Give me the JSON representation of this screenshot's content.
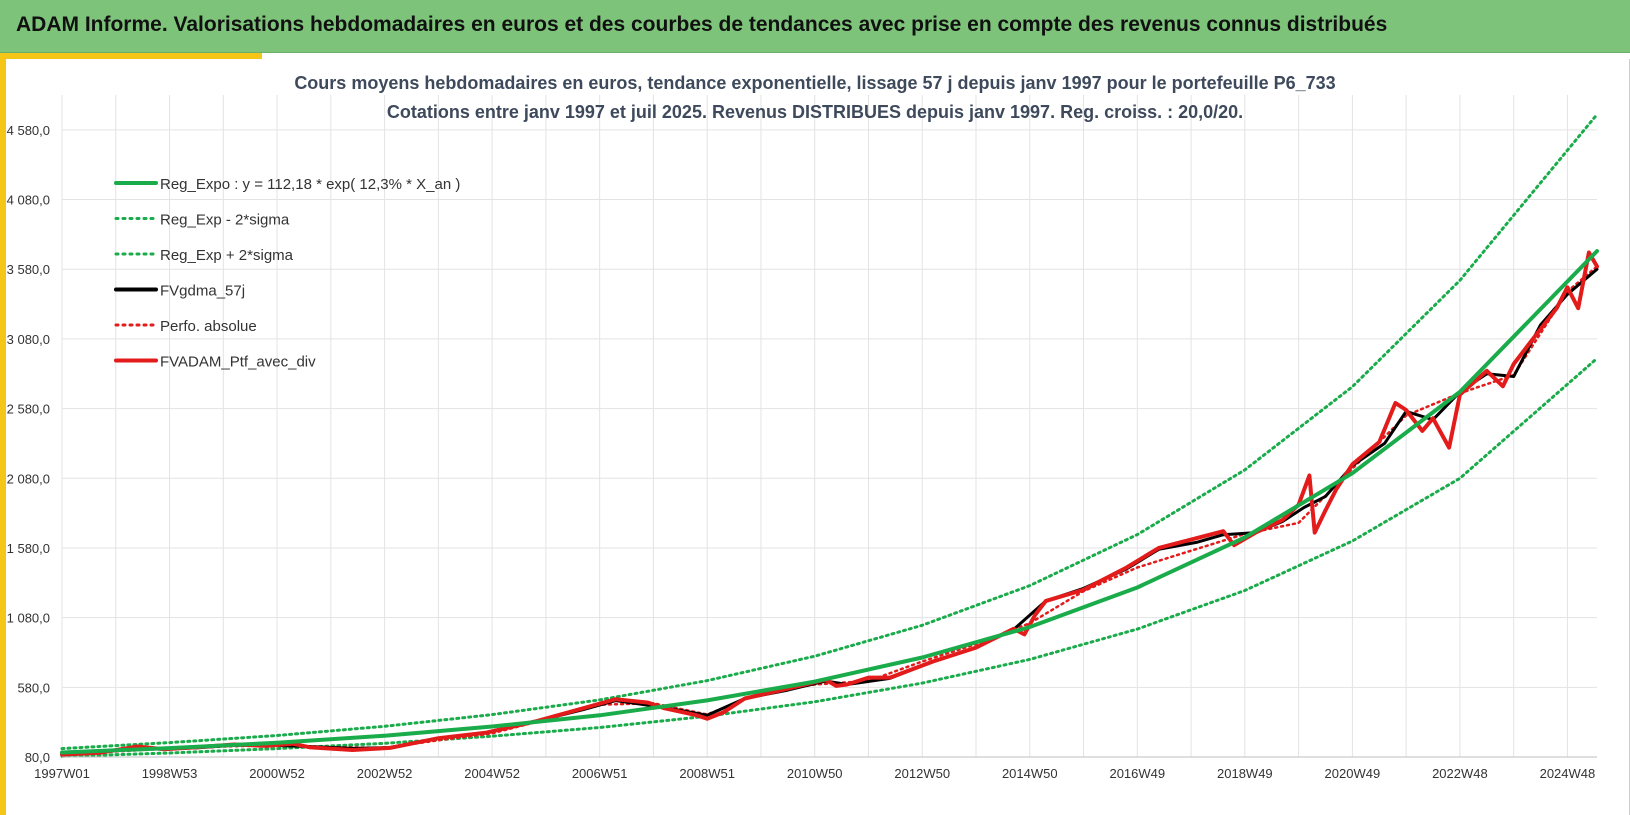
{
  "header": {
    "title": "ADAM Informe. Valorisations hebdomadaires en euros et des courbes de tendances avec prise en compte des revenus connus distribués"
  },
  "colors": {
    "header_bg": "#7dc47a",
    "accent": "#f5c518",
    "reg_expo": "#1aab4b",
    "sigma_bands": "#1aab4b",
    "fvgdma": "#000000",
    "perfo_absolue": "#e31b1b",
    "fvadam": "#e31b1b",
    "grid": "#e3e3e3"
  },
  "chart_data": {
    "type": "line",
    "title": [
      "Cours moyens hebdomadaires  en euros, tendance exponentielle, lissage 57 j depuis janv 1997 pour le portefeuille P6_733",
      "Cotations  entre janv 1997 et juil 2025. Revenus DISTRIBUES depuis janv 1997. Reg. croiss. : 20,0/20."
    ],
    "xlabel": "",
    "ylabel": "",
    "x_range": [
      1997.0,
      2025.55
    ],
    "ylim": [
      80,
      4830
    ],
    "grid": true,
    "legend_position": "top-left",
    "x_ticks": [
      {
        "label": "1997W01",
        "x": 1997.0
      },
      {
        "label": "1998W53",
        "x": 1999.0
      },
      {
        "label": "2000W52",
        "x": 2001.0
      },
      {
        "label": "2002W52",
        "x": 2003.0
      },
      {
        "label": "2004W52",
        "x": 2005.0
      },
      {
        "label": "2006W51",
        "x": 2007.0
      },
      {
        "label": "2008W51",
        "x": 2009.0
      },
      {
        "label": "2010W50",
        "x": 2011.0
      },
      {
        "label": "2012W50",
        "x": 2013.0
      },
      {
        "label": "2014W50",
        "x": 2015.0
      },
      {
        "label": "2016W49",
        "x": 2017.0
      },
      {
        "label": "2018W49",
        "x": 2019.0
      },
      {
        "label": "2020W49",
        "x": 2021.0
      },
      {
        "label": "2022W48",
        "x": 2023.0
      },
      {
        "label": "2024W48",
        "x": 2025.0
      }
    ],
    "y_ticks": [
      {
        "label": "80,0",
        "y": 80
      },
      {
        "label": "580,0",
        "y": 580
      },
      {
        "label": "1 080,0",
        "y": 1080
      },
      {
        "label": "1 580,0",
        "y": 1580
      },
      {
        "label": "2 080,0",
        "y": 2080
      },
      {
        "label": "2 580,0",
        "y": 2580
      },
      {
        "label": "3 080,0",
        "y": 3080
      },
      {
        "label": "3 580,0",
        "y": 3580
      },
      {
        "label": "4 080,0",
        "y": 4080
      },
      {
        "label": "4 580,0",
        "y": 4580
      }
    ],
    "legend": [
      {
        "label": "Reg_Expo : y = 112,18 * exp( 12,3% *  X_an )",
        "color": "#1aab4b",
        "style": "solid"
      },
      {
        "label": "Reg_Exp - 2*sigma",
        "color": "#1aab4b",
        "style": "dotted"
      },
      {
        "label": "Reg_Exp + 2*sigma",
        "color": "#1aab4b",
        "style": "dotted"
      },
      {
        "label": "FVgdma_57j",
        "color": "#000000",
        "style": "solid"
      },
      {
        "label": "Perfo. absolue",
        "color": "#e31b1b",
        "style": "dotted"
      },
      {
        "label": "FVADAM_Ptf_avec_div",
        "color": "#e31b1b",
        "style": "solid"
      }
    ],
    "series": [
      {
        "name": "Reg_Expo : y = 112,18 * exp( 12,3% *  X_an )",
        "style": "solid",
        "x": [
          1997.0,
          1999.0,
          2001.0,
          2003.0,
          2005.0,
          2007.0,
          2009.0,
          2011.0,
          2013.0,
          2015.0,
          2017.0,
          2019.0,
          2021.0,
          2023.0,
          2025.55
        ],
        "values": [
          112,
          144,
          182,
          233,
          299,
          379,
          486,
          621,
          794,
          1013,
          1296,
          1656,
          2116,
          2700,
          3710
        ]
      },
      {
        "name": "Reg_Exp - 2*sigma",
        "style": "dotted",
        "x": [
          1997.0,
          1999.0,
          2001.0,
          2003.0,
          2005.0,
          2007.0,
          2009.0,
          2011.0,
          2013.0,
          2015.0,
          2017.0,
          2019.0,
          2021.0,
          2023.0,
          2025.55
        ],
        "values": [
          85,
          109,
          140,
          178,
          229,
          292,
          373,
          476,
          610,
          780,
          998,
          1275,
          1630,
          2080,
          2940
        ]
      },
      {
        "name": "Reg_Exp + 2*sigma",
        "style": "dotted",
        "x": [
          1997.0,
          1999.0,
          2001.0,
          2003.0,
          2005.0,
          2007.0,
          2009.0,
          2011.0,
          2013.0,
          2015.0,
          2017.0,
          2019.0,
          2021.0,
          2023.0,
          2025.55
        ],
        "values": [
          140,
          183,
          234,
          300,
          384,
          490,
          628,
          803,
          1025,
          1310,
          1676,
          2140,
          2737,
          3500,
          4690
        ]
      },
      {
        "name": "FVgdma_57j",
        "style": "solid",
        "x": [
          1997.0,
          1997.7,
          1998.4,
          1998.9,
          1999.5,
          2000.2,
          2000.8,
          2001.6,
          2002.4,
          2003.1,
          2004.0,
          2004.9,
          2005.8,
          2006.7,
          2007.3,
          2008.2,
          2009.0,
          2009.7,
          2010.5,
          2011.2,
          2011.6,
          2012.4,
          2013.2,
          2014.0,
          2014.7,
          2015.3,
          2016.0,
          2016.8,
          2017.4,
          2018.1,
          2018.6,
          2019.2,
          2019.7,
          2020.1,
          2020.5,
          2021.0,
          2021.6,
          2022.0,
          2022.5,
          2023.0,
          2023.5,
          2024.0,
          2024.5,
          2025.0,
          2025.55
        ],
        "values": [
          95,
          115,
          140,
          138,
          145,
          165,
          165,
          155,
          142,
          148,
          215,
          255,
          335,
          420,
          485,
          435,
          380,
          500,
          560,
          625,
          600,
          645,
          765,
          865,
          995,
          1200,
          1290,
          1430,
          1570,
          1620,
          1675,
          1690,
          1770,
          1870,
          1950,
          2170,
          2330,
          2560,
          2500,
          2700,
          2830,
          2810,
          3180,
          3400,
          3580
        ]
      },
      {
        "name": "Perfo. absolue",
        "style": "dotted",
        "x": [
          1997.0,
          1998.0,
          1999.0,
          2000.0,
          2001.0,
          2002.0,
          2003.0,
          2004.0,
          2005.0,
          2006.0,
          2007.0,
          2008.0,
          2009.0,
          2010.0,
          2011.0,
          2012.0,
          2013.0,
          2014.0,
          2015.0,
          2016.0,
          2017.0,
          2018.0,
          2019.0,
          2020.0,
          2021.0,
          2022.0,
          2023.0,
          2024.0,
          2025.0,
          2025.55
        ],
        "values": [
          95,
          120,
          140,
          155,
          165,
          150,
          145,
          200,
          250,
          350,
          455,
          465,
          385,
          540,
          600,
          625,
          765,
          890,
          1040,
          1270,
          1440,
          1560,
          1680,
          1760,
          2150,
          2530,
          2690,
          2820,
          3420,
          3600
        ]
      },
      {
        "name": "FVADAM_Ptf_avec_div",
        "style": "solid",
        "x": [
          1997.0,
          1997.7,
          1998.4,
          1998.9,
          1999.5,
          2000.2,
          2000.8,
          2001.3,
          2001.6,
          2002.4,
          2003.1,
          2004.0,
          2004.9,
          2005.8,
          2006.7,
          2007.3,
          2007.9,
          2008.2,
          2008.8,
          2009.0,
          2009.3,
          2009.7,
          2010.5,
          2011.2,
          2011.4,
          2011.6,
          2012.0,
          2012.4,
          2013.2,
          2014.0,
          2014.7,
          2014.9,
          2015.1,
          2015.3,
          2016.0,
          2016.8,
          2017.4,
          2018.1,
          2018.6,
          2018.8,
          2019.2,
          2019.7,
          2020.0,
          2020.2,
          2020.3,
          2020.5,
          2020.7,
          2021.0,
          2021.5,
          2021.8,
          2022.0,
          2022.3,
          2022.5,
          2022.8,
          2023.0,
          2023.5,
          2023.8,
          2024.0,
          2024.5,
          2024.8,
          2025.0,
          2025.2,
          2025.4,
          2025.55
        ],
        "values": [
          98,
          110,
          155,
          135,
          150,
          170,
          160,
          175,
          150,
          130,
          145,
          215,
          255,
          335,
          430,
          495,
          470,
          430,
          380,
          355,
          400,
          500,
          570,
          635,
          590,
          600,
          650,
          650,
          765,
          865,
          1000,
          960,
          1100,
          1200,
          1280,
          1440,
          1580,
          1650,
          1700,
          1600,
          1690,
          1780,
          1890,
          2100,
          1690,
          1850,
          2000,
          2180,
          2340,
          2620,
          2570,
          2420,
          2510,
          2300,
          2680,
          2850,
          2740,
          2900,
          3150,
          3300,
          3450,
          3300,
          3700,
          3600
        ]
      }
    ]
  }
}
